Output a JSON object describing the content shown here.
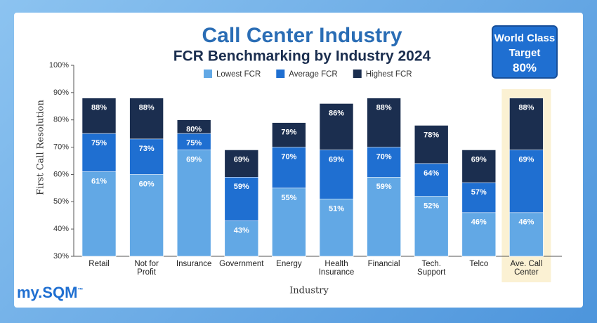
{
  "chart_data": {
    "type": "overlapping_bar",
    "title": "Call Center Industry",
    "subtitle": "FCR Benchmarking by Industry 2024",
    "x_label": "Industry",
    "y_label": "First Call Resolution",
    "categories": [
      "Retail",
      "Not for\nProfit",
      "Insurance",
      "Government",
      "Energy",
      "Health\nInsurance",
      "Financial",
      "Tech.\nSupport",
      "Telco",
      "Ave. Call\nCenter"
    ],
    "series": [
      {
        "name": "Highest FCR",
        "color": "#1b2e4f",
        "values": [
          88,
          88,
          80,
          69,
          79,
          86,
          88,
          78,
          69,
          88
        ],
        "value_labels": [
          "88%",
          "88%",
          "80%",
          "69%",
          "79%",
          "86%",
          "88%",
          "78%",
          "69%",
          "88%"
        ]
      },
      {
        "name": "Average FCR",
        "color": "#1f6fd1",
        "values": [
          75,
          73,
          75,
          59,
          70,
          69,
          70,
          64,
          57,
          69
        ],
        "value_labels": [
          "75%",
          "73%",
          "75%",
          "59%",
          "70%",
          "69%",
          "70%",
          "64%",
          "57%",
          "69%"
        ]
      },
      {
        "name": "Lowest FCR",
        "color": "#62a8e5",
        "values": [
          61,
          60,
          69,
          43,
          55,
          51,
          59,
          52,
          46,
          46
        ],
        "value_labels": [
          "61%",
          "60%",
          "69%",
          "43%",
          "55%",
          "51%",
          "59%",
          "52%",
          "46%",
          "46%"
        ]
      }
    ],
    "legend_order": [
      2,
      1,
      0
    ],
    "ylim": [
      30,
      100
    ],
    "yticks": [
      {
        "value": 30,
        "label": "30%"
      },
      {
        "value": 40,
        "label": "40%"
      },
      {
        "value": 50,
        "label": "50%"
      },
      {
        "value": 60,
        "label": "60%"
      },
      {
        "value": 70,
        "label": "70%"
      },
      {
        "value": 80,
        "label": "80%"
      },
      {
        "value": 90,
        "label": "90%"
      },
      {
        "value": 100,
        "label": "100%"
      }
    ],
    "highlight_index": 9,
    "grid": false
  },
  "target_box": {
    "line1": "World Class",
    "line2": "Target",
    "value": "80%"
  },
  "logo": {
    "text": "my.SQM",
    "mark": "™"
  }
}
